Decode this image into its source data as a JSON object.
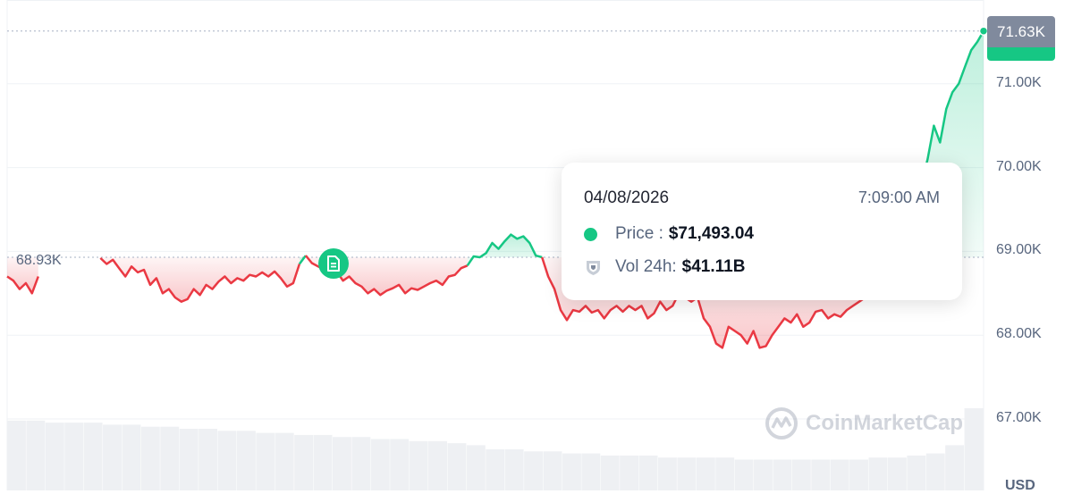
{
  "chart_data": {
    "type": "area",
    "currency": "USD",
    "ylim": [
      66800,
      72000
    ],
    "y_ticks": [
      {
        "value": 67000,
        "label": "67.00K"
      },
      {
        "value": 68000,
        "label": "68.00K"
      },
      {
        "value": 69000,
        "label": "69.00K"
      },
      {
        "value": 70000,
        "label": "70.00K"
      },
      {
        "value": 71000,
        "label": "71.00K"
      }
    ],
    "reference_price": {
      "value": 68930,
      "label": "68.93K"
    },
    "current_price": {
      "value": 71630,
      "label": "71.63K"
    },
    "series": [
      {
        "values": [
          68700,
          68650,
          68550,
          68620,
          68500,
          68700,
          null,
          null,
          null,
          null,
          null,
          null,
          null,
          null,
          null,
          68920,
          68850,
          68900,
          68800,
          68700,
          68820,
          68750,
          68780,
          68600,
          68680,
          68500,
          68550,
          68450,
          68400,
          68430,
          68550,
          68480,
          68600,
          68550,
          68640,
          68700,
          68620,
          68680,
          68650,
          68720,
          68700,
          68750,
          68700,
          68760,
          68680,
          68580,
          68620,
          68850,
          68950,
          68860,
          68820,
          68780,
          68700,
          68760,
          68650,
          68700,
          68620,
          68580,
          68500,
          68550,
          68480,
          68530,
          68560,
          68600,
          68500,
          68560,
          68540,
          68580,
          68620,
          68650,
          68600,
          68700,
          68720,
          68800,
          68830,
          68940,
          68930,
          68980,
          69100,
          69030,
          69120,
          69200,
          69150,
          69180,
          69100,
          68950,
          68930,
          68700,
          68550,
          68300,
          68180,
          68300,
          68280,
          68350,
          68270,
          68300,
          68200,
          68300,
          68350,
          68280,
          68350,
          68300,
          68350,
          68200,
          68260,
          68400,
          68300,
          68350,
          68500,
          68450,
          68400,
          68450,
          68200,
          68100,
          67900,
          67850,
          68100,
          68050,
          68000,
          67900,
          68050,
          67850,
          67870,
          68000,
          68100,
          68200,
          68150,
          68250,
          68100,
          68150,
          68280,
          68300,
          68200,
          68250,
          68220,
          68300,
          68350,
          68400,
          68450,
          68600,
          68800,
          68900,
          68950,
          69000,
          69100,
          69300,
          69500,
          69800,
          70100,
          70500,
          70300,
          70700,
          70900,
          71000,
          71200,
          71400,
          71500,
          71630
        ]
      }
    ],
    "volume_values": [
      0.34,
      0.34,
      0.33,
      0.33,
      0.33,
      0.32,
      0.32,
      0.31,
      0.31,
      0.3,
      0.3,
      0.29,
      0.29,
      0.28,
      0.28,
      0.27,
      0.27,
      0.26,
      0.26,
      0.25,
      0.25,
      0.24,
      0.24,
      0.23,
      0.22,
      0.2,
      0.2,
      0.19,
      0.19,
      0.18,
      0.18,
      0.17,
      0.17,
      0.17,
      0.16,
      0.16,
      0.16,
      0.16,
      0.15,
      0.15,
      0.15,
      0.15,
      0.15,
      0.15,
      0.15,
      0.16,
      0.16,
      0.17,
      0.18,
      0.22,
      0.4
    ]
  },
  "tooltip": {
    "date": "04/08/2026",
    "time": "7:09:00 AM",
    "price_label": "Price :",
    "price_value": "$71,493.04",
    "vol_label": "Vol 24h:",
    "vol_value": "$41.11B"
  },
  "watermark": "CoinMarketCap",
  "axis_unit": "USD",
  "colors": {
    "up": "#16c784",
    "down": "#ea3943",
    "grid": "#eff2f5",
    "label": "#58667e"
  }
}
